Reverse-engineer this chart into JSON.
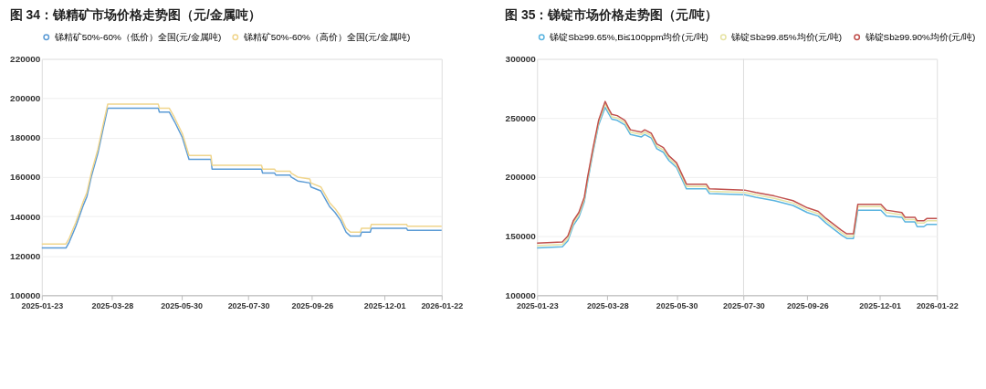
{
  "chart_data": [
    {
      "type": "line",
      "title": "图 34：锑精矿市场价格走势图（元/金属吨）",
      "legend": "top",
      "grid": "y",
      "marker": "none",
      "line_style": "solid",
      "xlim": [
        "2025-01-23",
        "2026-01-22"
      ],
      "xticks": [
        "2025-01-23",
        "2025-03-28",
        "2025-05-30",
        "2025-07-30",
        "2025-09-26",
        "2025-12-01",
        "2026-01-22"
      ],
      "ylim": [
        100000,
        220000
      ],
      "yticks": [
        100000,
        120000,
        140000,
        160000,
        180000,
        200000,
        220000
      ],
      "x": [
        "2025-01-23",
        "2025-02-14",
        "2025-02-17",
        "2025-02-23",
        "2025-03-02",
        "2025-03-05",
        "2025-03-09",
        "2025-03-15",
        "2025-03-20",
        "2025-03-24",
        "2025-05-09",
        "2025-05-10",
        "2025-05-19",
        "2025-05-24",
        "2025-05-31",
        "2025-06-06",
        "2025-06-26",
        "2025-06-27",
        "2025-08-11",
        "2025-08-12",
        "2025-08-23",
        "2025-08-24",
        "2025-09-06",
        "2025-09-07",
        "2025-09-13",
        "2025-09-24",
        "2025-09-25",
        "2025-10-04",
        "2025-10-09",
        "2025-10-12",
        "2025-10-17",
        "2025-10-22",
        "2025-10-27",
        "2025-10-31",
        "2025-11-09",
        "2025-11-10",
        "2025-11-18",
        "2025-11-19",
        "2025-12-21",
        "2025-12-22",
        "2026-01-22"
      ],
      "series": [
        {
          "name": "锑精矿50%-60%（低价）全国(元/金属吨)",
          "color": "#5b9bd5",
          "values": [
            124000,
            124000,
            127000,
            135000,
            146000,
            150000,
            160000,
            172000,
            185000,
            195000,
            195000,
            193000,
            193000,
            188000,
            180000,
            169000,
            169000,
            164000,
            164000,
            162000,
            162000,
            161000,
            161000,
            160000,
            158000,
            157000,
            155000,
            153000,
            148000,
            145000,
            142000,
            138000,
            132000,
            130000,
            130000,
            132000,
            132000,
            134000,
            134000,
            133000,
            133000
          ]
        },
        {
          "name": "锑精矿50%-60%（高价）全国(元/金属吨)",
          "color": "#f0d58c",
          "values": [
            126000,
            126000,
            129000,
            137000,
            148000,
            152000,
            162000,
            174000,
            187000,
            197000,
            197000,
            195000,
            195000,
            190000,
            182000,
            171000,
            171000,
            166000,
            166000,
            164000,
            164000,
            163000,
            163000,
            162000,
            160000,
            159000,
            157000,
            155000,
            150000,
            147000,
            144000,
            140000,
            134000,
            132000,
            132000,
            134000,
            134000,
            136000,
            136000,
            135000,
            135000
          ]
        }
      ]
    },
    {
      "type": "line",
      "title": "图 35：锑锭市场价格走势图（元/吨）",
      "legend": "top",
      "grid": "y",
      "marker": "none",
      "line_style": "solid",
      "xlim": [
        "2025-01-23",
        "2026-01-22"
      ],
      "xticks": [
        "2025-01-23",
        "2025-03-28",
        "2025-05-30",
        "2025-07-30",
        "2025-09-26",
        "2025-12-01",
        "2026-01-22"
      ],
      "ylim": [
        100000,
        300000
      ],
      "yticks": [
        100000,
        150000,
        200000,
        250000,
        300000
      ],
      "ref_lines": [
        {
          "axis": "x",
          "value": "2025-07-30",
          "color": "#dddddd"
        }
      ],
      "x": [
        "2025-01-23",
        "2025-02-15",
        "2025-02-20",
        "2025-02-25",
        "2025-03-02",
        "2025-03-07",
        "2025-03-10",
        "2025-03-15",
        "2025-03-20",
        "2025-03-26",
        "2025-03-29",
        "2025-04-01",
        "2025-04-06",
        "2025-04-13",
        "2025-04-18",
        "2025-04-28",
        "2025-05-01",
        "2025-05-07",
        "2025-05-12",
        "2025-05-18",
        "2025-05-23",
        "2025-05-30",
        "2025-06-08",
        "2025-06-26",
        "2025-06-29",
        "2025-07-31",
        "2025-08-10",
        "2025-08-27",
        "2025-09-13",
        "2025-09-26",
        "2025-10-06",
        "2025-10-13",
        "2025-10-20",
        "2025-10-27",
        "2025-11-01",
        "2025-11-07",
        "2025-11-11",
        "2025-12-02",
        "2025-12-07",
        "2025-12-21",
        "2025-12-24",
        "2026-01-02",
        "2026-01-04",
        "2026-01-10",
        "2026-01-13",
        "2026-01-22"
      ],
      "series": [
        {
          "name": "锑锭Sb≥99.65%,Bi≤100ppm均价(元/吨)",
          "color": "#5ab4e0",
          "values": [
            140000,
            141000,
            146000,
            159000,
            166000,
            179000,
            196000,
            221000,
            244000,
            259000,
            254000,
            249000,
            248000,
            244000,
            236000,
            234000,
            236000,
            233000,
            224000,
            221000,
            214000,
            208000,
            190000,
            190000,
            186000,
            185000,
            183000,
            180000,
            176000,
            170000,
            167000,
            161000,
            156000,
            151000,
            148000,
            148000,
            172000,
            172000,
            167000,
            166000,
            162000,
            162000,
            158000,
            158000,
            160000,
            160000
          ]
        },
        {
          "name": "锑锭Sb≥99.85%均价(元/吨)",
          "color": "#e6e3a3",
          "values": [
            142000,
            143000,
            148000,
            161000,
            168000,
            181000,
            198000,
            223000,
            246000,
            262000,
            256000,
            251000,
            250000,
            246000,
            238000,
            236000,
            238000,
            235000,
            226000,
            223000,
            216000,
            210000,
            192000,
            192000,
            188000,
            187000,
            185000,
            182000,
            178000,
            172000,
            169000,
            163000,
            158000,
            153000,
            150000,
            150000,
            175000,
            175000,
            170000,
            168000,
            164000,
            164000,
            161000,
            161000,
            163000,
            163000
          ]
        },
        {
          "name": "锑锭Sb≥99.90%均价(元/吨)",
          "color": "#c0504d",
          "values": [
            144000,
            145000,
            150000,
            163000,
            170000,
            183000,
            200000,
            225000,
            248000,
            264000,
            258000,
            253000,
            252000,
            248000,
            240000,
            238000,
            240000,
            237000,
            228000,
            225000,
            218000,
            212000,
            194000,
            194000,
            190000,
            189000,
            187000,
            184000,
            180000,
            174000,
            171000,
            165000,
            160000,
            155000,
            152000,
            152000,
            177000,
            177000,
            172000,
            170000,
            166000,
            166000,
            163000,
            163000,
            165000,
            165000
          ]
        }
      ]
    }
  ]
}
